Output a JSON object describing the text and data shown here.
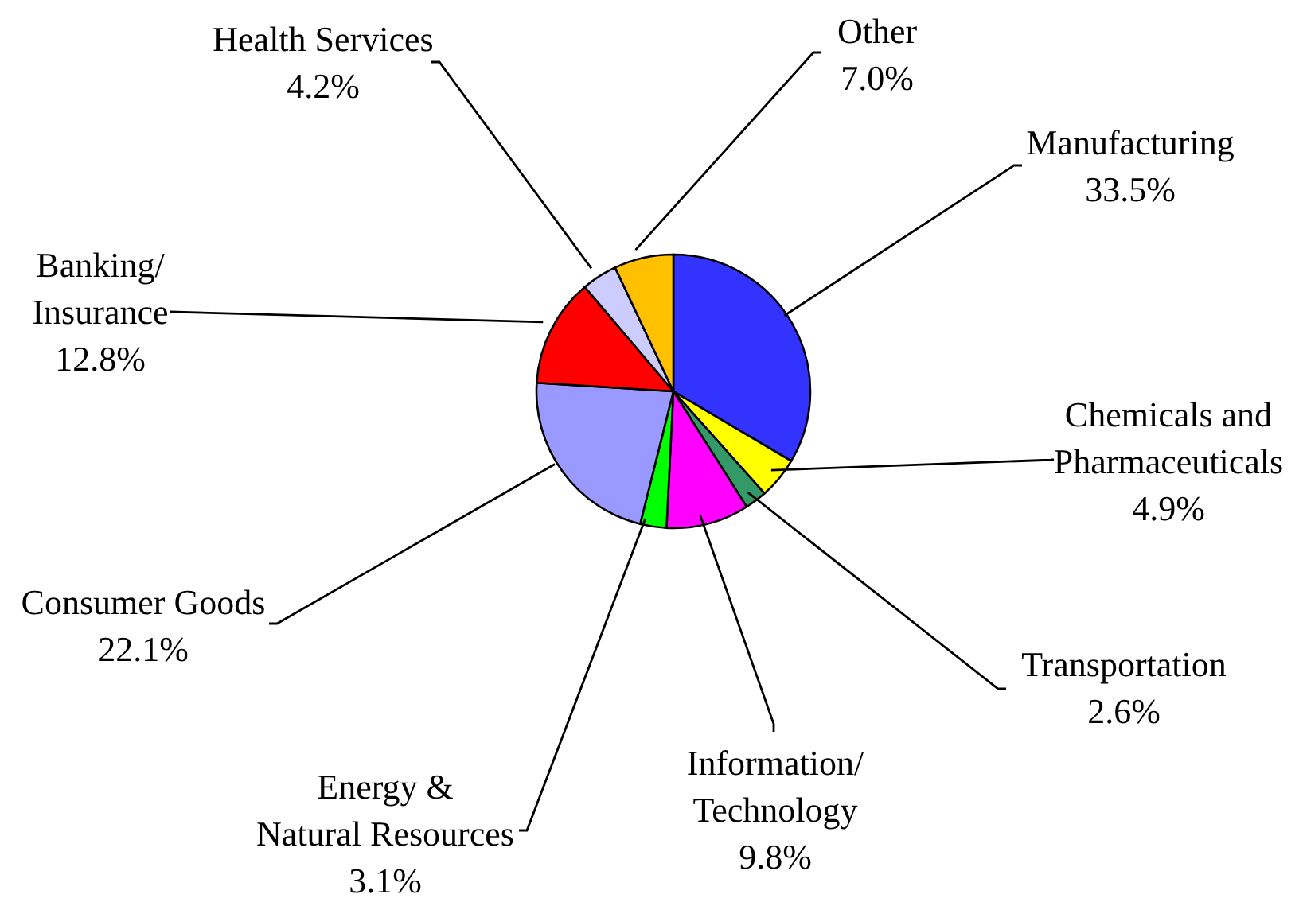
{
  "chart_data": {
    "type": "pie",
    "categories": [
      "Manufacturing",
      "Chemicals and\nPharmaceuticals",
      "Transportation",
      "Information/\nTechnology",
      "Energy &\nNatural Resources",
      "Consumer Goods",
      "Banking/\nInsurance",
      "Health Services",
      "Other"
    ],
    "values": [
      33.5,
      4.9,
      2.6,
      9.8,
      3.1,
      22.1,
      12.8,
      4.2,
      7.0
    ],
    "value_labels": [
      "33.5%",
      "4.9%",
      "2.6%",
      "9.8%",
      "3.1%",
      "22.1%",
      "12.8%",
      "4.2%",
      "7.0%"
    ],
    "colors": [
      "#3333ff",
      "#ffff00",
      "#339966",
      "#ff00ff",
      "#00ff00",
      "#9999ff",
      "#ff0000",
      "#ccccff",
      "#ffc000"
    ],
    "legend": false
  }
}
